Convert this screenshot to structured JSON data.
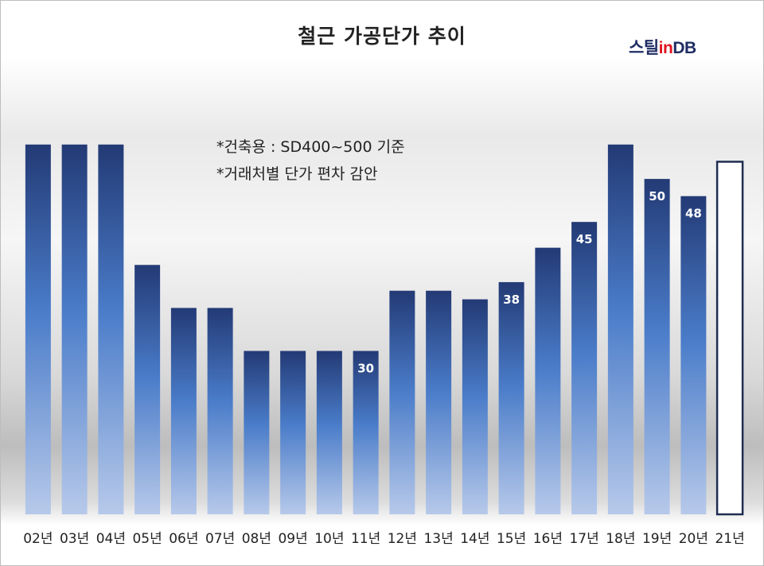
{
  "chart_data": {
    "type": "bar",
    "title": "철근 가공단가 추이",
    "categories": [
      "02년",
      "03년",
      "04년",
      "05년",
      "06년",
      "07년",
      "08년",
      "09년",
      "10년",
      "11년",
      "12년",
      "13년",
      "14년",
      "15년",
      "16년",
      "17년",
      "18년",
      "19년",
      "20년",
      "21년"
    ],
    "values": [
      54,
      54,
      54,
      40,
      35,
      35,
      30,
      30,
      30,
      30,
      37,
      37,
      36,
      38,
      42,
      45,
      54,
      50,
      48,
      null
    ],
    "data_labels": {
      "9": "30",
      "13": "38",
      "15": "45",
      "17": "50",
      "18": "48"
    },
    "outlined_bars": [
      19
    ],
    "outlined_value": 52,
    "ylim": [
      11,
      55
    ],
    "xlabel": "",
    "ylabel": "",
    "grid": false,
    "legend": "none",
    "colors": {
      "bar_top": "#233a75",
      "bar_mid": "#4a7cc9",
      "bar_bottom": "#b7c9ea",
      "outline": "#1f2d50"
    }
  },
  "notes": [
    "*건축용 : SD400~500 기준",
    "*거래처별 단가 편차 감안"
  ],
  "brand": {
    "part1": "스틸",
    "part2": "in",
    "part3": "DB"
  }
}
